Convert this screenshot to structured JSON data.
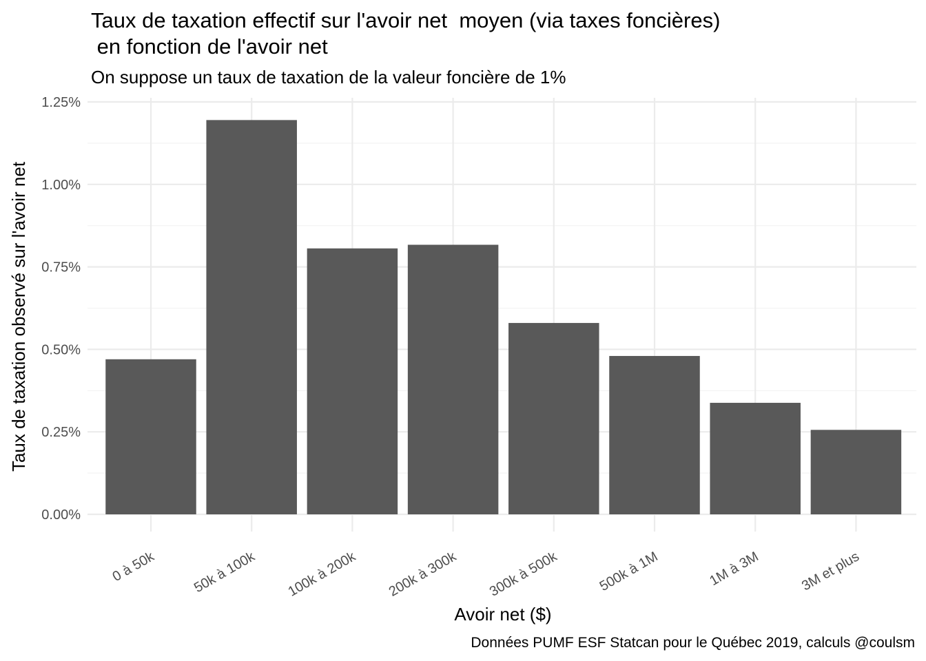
{
  "title_line1": "Taux de taxation effectif sur l'avoir net  moyen (via taxes foncières)",
  "title_line2": " en fonction de l'avoir net",
  "subtitle": "On suppose un taux de taxation de la valeur foncière de 1%",
  "caption": "Données PUMF ESF Statcan pour le Québec 2019, calculs @coulsm",
  "colors": {
    "bar": "#595959",
    "grid_major": "#ebebeb",
    "grid_minor": "#f2f2f2",
    "tick_text": "#4d4d4d"
  },
  "chart_data": {
    "type": "bar",
    "title": "Taux de taxation effectif sur l'avoir net  moyen (via taxes foncières)\n en fonction de l'avoir net",
    "subtitle": "On suppose un taux de taxation de la valeur foncière de 1%",
    "xlabel": "Avoir net ($)",
    "ylabel": "Taux de taxation observé sur l'avoir net",
    "categories": [
      "0 à 50k",
      "50k à 100k",
      "100k à 200k",
      "200k à 300k",
      "300k à 500k",
      "500k à 1M",
      "1M à 3M",
      "3M et plus"
    ],
    "values": [
      0.47,
      1.195,
      0.806,
      0.817,
      0.58,
      0.48,
      0.338,
      0.256
    ],
    "unit": "%",
    "ylim": [
      0,
      1.25
    ],
    "yticks": [
      0,
      0.25,
      0.5,
      0.75,
      1.0,
      1.25
    ],
    "ytick_labels": [
      "0.00%",
      "0.25%",
      "0.50%",
      "0.75%",
      "1.00%",
      "1.25%"
    ],
    "grid": true,
    "legend": "none"
  }
}
